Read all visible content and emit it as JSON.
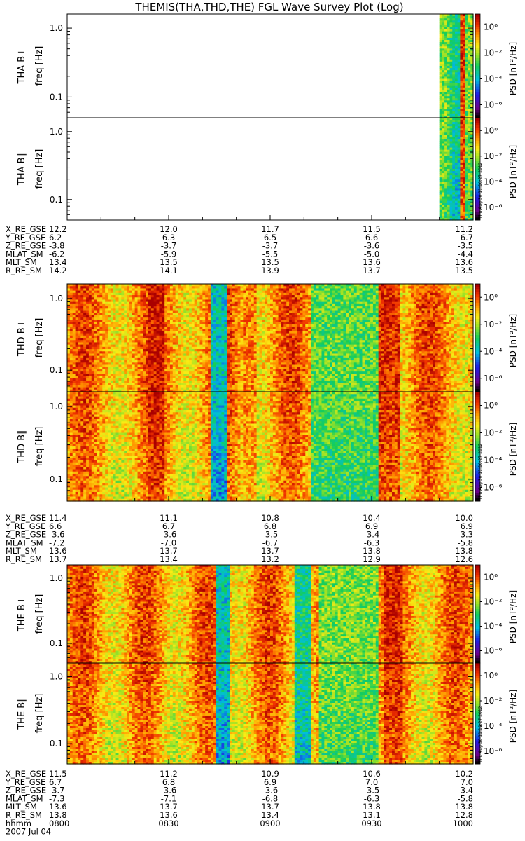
{
  "title": "THEMIS(THA,THD,THE) FGL Wave Survey Plot (Log)",
  "freq_label": "freq [Hz]",
  "freq_ticks": [
    "1.0",
    "0.1"
  ],
  "colorbar": {
    "label": "PSD [nT²/Hz]",
    "tick_labels": [
      "10⁰",
      "10⁻²",
      "10⁻⁴",
      "10⁻⁶"
    ]
  },
  "stamp": "Thu Aug 30 11:10:27 2012",
  "ephemeris_row_labels": [
    "X_RE_GSE",
    "Y_RE_GSE",
    "Z_RE_GSE",
    "MLAT_SM",
    "MLT_SM",
    "R_RE_SM"
  ],
  "time_axis": {
    "row_label": "hhmm",
    "ticks": [
      "0800",
      "0830",
      "0900",
      "0930",
      "1000"
    ],
    "date": "2007 Jul 04"
  },
  "probes": [
    {
      "name": "THA",
      "panels": [
        "THA B⊥",
        "THA B∥"
      ],
      "ephemeris": [
        [
          "12.2",
          "12.0",
          "11.7",
          "11.5",
          "11.2"
        ],
        [
          "6.2",
          "6.3",
          "6.5",
          "6.6",
          "6.7"
        ],
        [
          "-3.8",
          "-3.7",
          "-3.7",
          "-3.6",
          "-3.5"
        ],
        [
          "-6.2",
          "-5.9",
          "-5.5",
          "-5.0",
          "-4.4"
        ],
        [
          "13.4",
          "13.5",
          "13.5",
          "13.6",
          "13.6"
        ],
        [
          "14.2",
          "14.1",
          "13.9",
          "13.7",
          "13.5"
        ]
      ]
    },
    {
      "name": "THD",
      "panels": [
        "THD B⊥",
        "THD B∥"
      ],
      "ephemeris": [
        [
          "11.4",
          "11.1",
          "10.8",
          "10.4",
          "10.0"
        ],
        [
          "6.6",
          "6.7",
          "6.8",
          "6.9",
          "6.9"
        ],
        [
          "-3.6",
          "-3.6",
          "-3.5",
          "-3.4",
          "-3.3"
        ],
        [
          "-7.2",
          "-7.0",
          "-6.7",
          "-6.3",
          "-5.8"
        ],
        [
          "13.6",
          "13.7",
          "13.7",
          "13.8",
          "13.8"
        ],
        [
          "13.7",
          "13.4",
          "13.2",
          "12.9",
          "12.6"
        ]
      ]
    },
    {
      "name": "THE",
      "panels": [
        "THE B⊥",
        "THE B∥"
      ],
      "ephemeris": [
        [
          "11.5",
          "11.2",
          "10.9",
          "10.6",
          "10.2"
        ],
        [
          "6.7",
          "6.8",
          "6.9",
          "7.0",
          "7.0"
        ],
        [
          "-3.7",
          "-3.6",
          "-3.6",
          "-3.5",
          "-3.4"
        ],
        [
          "-7.3",
          "-7.1",
          "-6.8",
          "-6.3",
          "-5.8"
        ],
        [
          "13.6",
          "13.7",
          "13.7",
          "13.8",
          "13.8"
        ],
        [
          "13.8",
          "13.6",
          "13.4",
          "13.1",
          "12.8"
        ]
      ]
    }
  ],
  "chart_data": {
    "type": "heatmap",
    "title": "THEMIS(THA,THD,THE) FGL Wave Survey Plot (Log)",
    "xlabel": "hhmm",
    "x_range": [
      "0800",
      "1000"
    ],
    "ylabel": "freq [Hz]",
    "y_scale": "log",
    "ylim": [
      0.05,
      1.6
    ],
    "z_label": "PSD [nT²/Hz]",
    "z_scale": "log",
    "zlim": [
      1e-07,
      10
    ],
    "colormap": "rainbow (black-purple-blue-cyan-green-yellow-orange-red)",
    "panels": [
      {
        "name": "THA B⊥",
        "data_coverage": [
          "0950",
          "1000"
        ]
      },
      {
        "name": "THA B∥",
        "data_coverage": [
          "0950",
          "1000"
        ]
      },
      {
        "name": "THD B⊥",
        "data_coverage": [
          "0800",
          "1000"
        ]
      },
      {
        "name": "THD B∥",
        "data_coverage": [
          "0800",
          "1000"
        ]
      },
      {
        "name": "THE B⊥",
        "data_coverage": [
          "0800",
          "1000"
        ]
      },
      {
        "name": "THE B∥",
        "data_coverage": [
          "0800",
          "1000"
        ]
      }
    ]
  }
}
